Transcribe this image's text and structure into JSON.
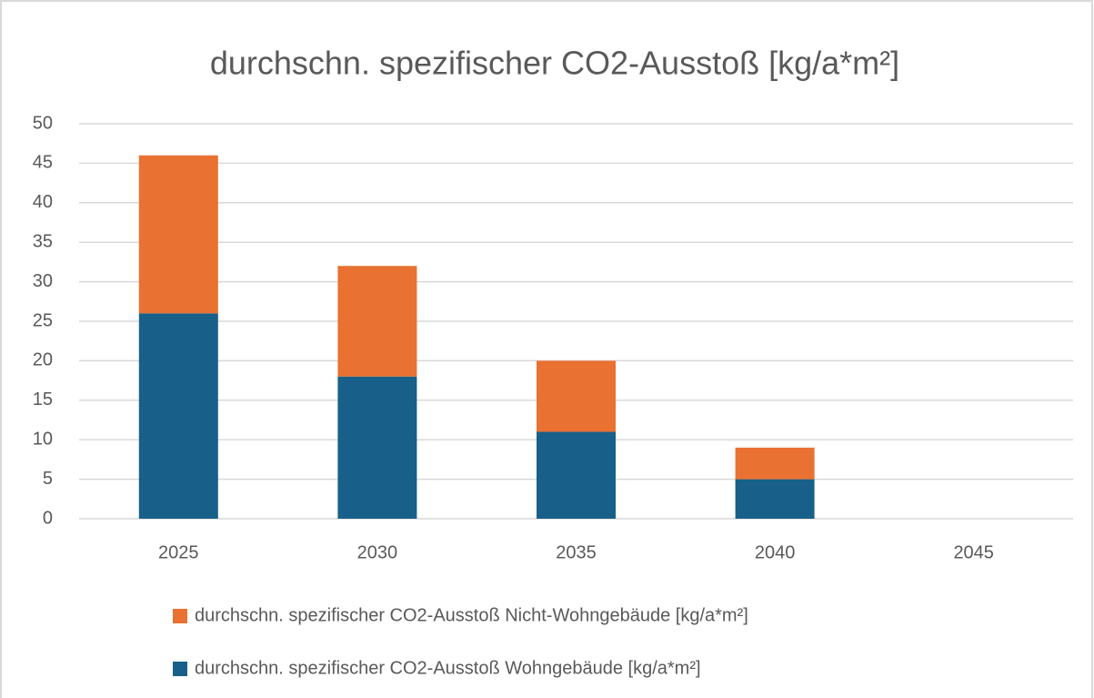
{
  "chart_data": {
    "type": "stacked_bar",
    "title": "durchschn. spezifischer CO2-Ausstoß [kg/a*m²]",
    "categories": [
      "2025",
      "2030",
      "2035",
      "2040",
      "2045"
    ],
    "series": [
      {
        "name": "durchschn. spezifischer CO2-Ausstoß Wohngebäude [kg/a*m²]",
        "color": "#186089",
        "values": [
          26,
          18,
          11,
          5,
          0
        ]
      },
      {
        "name": "durchschn. spezifischer CO2-Ausstoß Nicht-Wohngebäude [kg/a*m²]",
        "color": "#e97132",
        "values": [
          20,
          14,
          9,
          4,
          0
        ]
      }
    ],
    "ylim": [
      0,
      50
    ],
    "yticks": [
      0,
      5,
      10,
      15,
      20,
      25,
      30,
      35,
      40,
      45,
      50
    ],
    "grid": true,
    "legend": "bottom"
  }
}
